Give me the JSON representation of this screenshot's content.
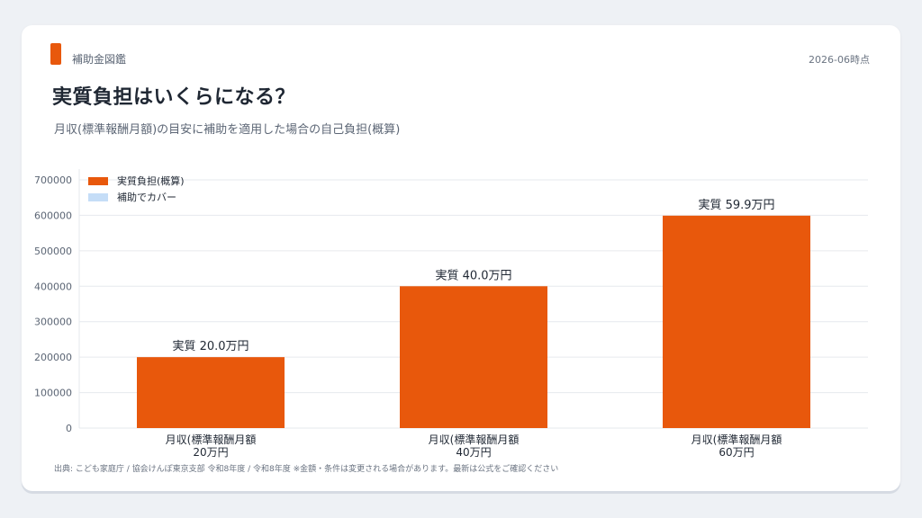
{
  "header": {
    "brand": "補助金図鑑",
    "date": "2026-06時点",
    "title": "実質負担はいくらになる？",
    "subtitle": "月収(標準報酬月額)の目安に補助を適用した場合の自己負担(概算)"
  },
  "colors": {
    "accent": "#e8580c",
    "covered": "#c5ddf7"
  },
  "chart_data": {
    "type": "bar",
    "categories": [
      [
        "月収(標準報酬月額",
        "20万円"
      ],
      [
        "月収(標準報酬月額",
        "40万円"
      ],
      [
        "月収(標準報酬月額",
        "60万円"
      ]
    ],
    "series": [
      {
        "name": "実質負担(概算)",
        "values": [
          200000,
          400000,
          599000
        ],
        "color": "#e8580c"
      },
      {
        "name": "補助でカバー",
        "values": [
          0,
          0,
          0
        ],
        "color": "#c5ddf7"
      }
    ],
    "data_labels": [
      "実質 20.0万円",
      "実質 40.0万円",
      "実質 59.9万円"
    ],
    "yticks": [
      "0",
      "100000",
      "200000",
      "300000",
      "400000",
      "500000",
      "600000",
      "700000"
    ],
    "ylim": [
      0,
      700000
    ],
    "grid": true,
    "legend_position": "top-left",
    "stacked": true
  },
  "footer": {
    "source": "出典: こども家庭庁 / 協会けんぽ東京支部 令和8年度 / 令和8年度 ※金額・条件は変更される場合があります。最新は公式をご確認ください"
  }
}
